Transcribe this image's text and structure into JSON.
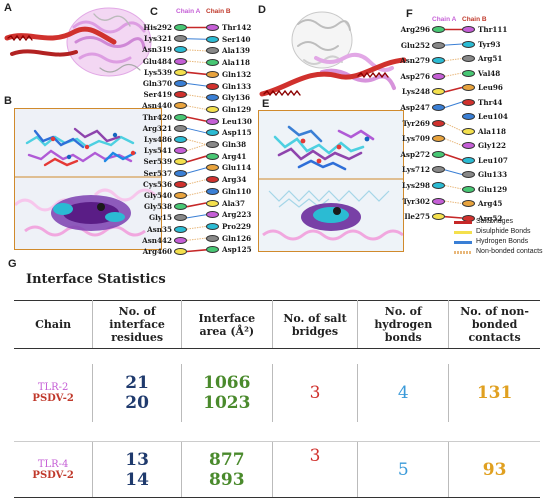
{
  "figure": {
    "panel_labels": [
      "A",
      "B",
      "C",
      "D",
      "E",
      "F",
      "G"
    ],
    "panel_c": {
      "chain_a_label": "Chain A",
      "chain_b_label": "Chain B",
      "left_residues": [
        "His292",
        "Lys321",
        "Asn319",
        "Glu484",
        "Lys539",
        "Gln370",
        "Ser419",
        "Asn440",
        "Thr420",
        "Arg321",
        "Lys486",
        "Lys541",
        "Ser539",
        "Ser537",
        "Cys536",
        "Gly540",
        "Gly538",
        "Gly15",
        "Asn35",
        "Asn442",
        "Arg460"
      ],
      "right_residues": [
        "Thr142",
        "Ser140",
        "Ala139",
        "Ala118",
        "Gln132",
        "Gln133",
        "Gly136",
        "Gln129",
        "Leu130",
        "Asp115",
        "Gln38",
        "Arg41",
        "Glu114",
        "Arg34",
        "Gln110",
        "Ala37",
        "Arg223",
        "Pro229",
        "Gln126",
        "Asp125"
      ]
    },
    "panel_f": {
      "chain_a_label": "Chain A",
      "chain_b_label": "Chain B",
      "left_residues": [
        "Arg296",
        "Glu252",
        "Asn279",
        "Asp276",
        "Lys248",
        "Asp247",
        "Tyr269",
        "Lys709",
        "Asp272",
        "Lys712",
        "Lys298",
        "Tyr302",
        "Ile275"
      ],
      "right_residues": [
        "Thr111",
        "Tyr93",
        "Arg51",
        "Val48",
        "Leu96",
        "Thr44",
        "Leu104",
        "Ala118",
        "Gly122",
        "Leu107",
        "Glu133",
        "Glu129",
        "Arg45",
        "Arg52"
      ],
      "legend": [
        "Salt bridges",
        "Disulphide Bonds",
        "Hydrogen Bonds",
        "Non-bonded contacts"
      ]
    },
    "colors": {
      "salt_bridge": "#c62828",
      "disulphide": "#f4e04d",
      "hydrogen": "#3a7fd5",
      "nonbonded": "#e8b77a",
      "chain_a": "#c55fd6",
      "chain_b": "#c0392b",
      "ribbon_a": "#e6a6e8",
      "ribbon_b": "#d0312d"
    }
  },
  "interface_statistics": {
    "title": "Interface Statistics",
    "headers": [
      "Chain",
      "No. of interface residues",
      "Interface area (Å²)",
      "No. of salt bridges",
      "No. of hydrogen bonds",
      "No. of non-bonded contacts"
    ],
    "rows": [
      {
        "chain_a": "TLR-2",
        "chain_b": "PSDV-2",
        "residues_a": "21",
        "residues_b": "20",
        "area_a": "1066",
        "area_b": "1023",
        "salt_bridges": "3",
        "hydrogen_bonds": "4",
        "nonbonded": "131"
      },
      {
        "chain_a": "TLR-4",
        "chain_b": "PSDV-2",
        "residues_a": "13",
        "residues_b": "14",
        "area_a": "877",
        "area_b": "893",
        "salt_bridges": "3",
        "hydrogen_bonds": "5",
        "nonbonded": "93"
      }
    ]
  }
}
